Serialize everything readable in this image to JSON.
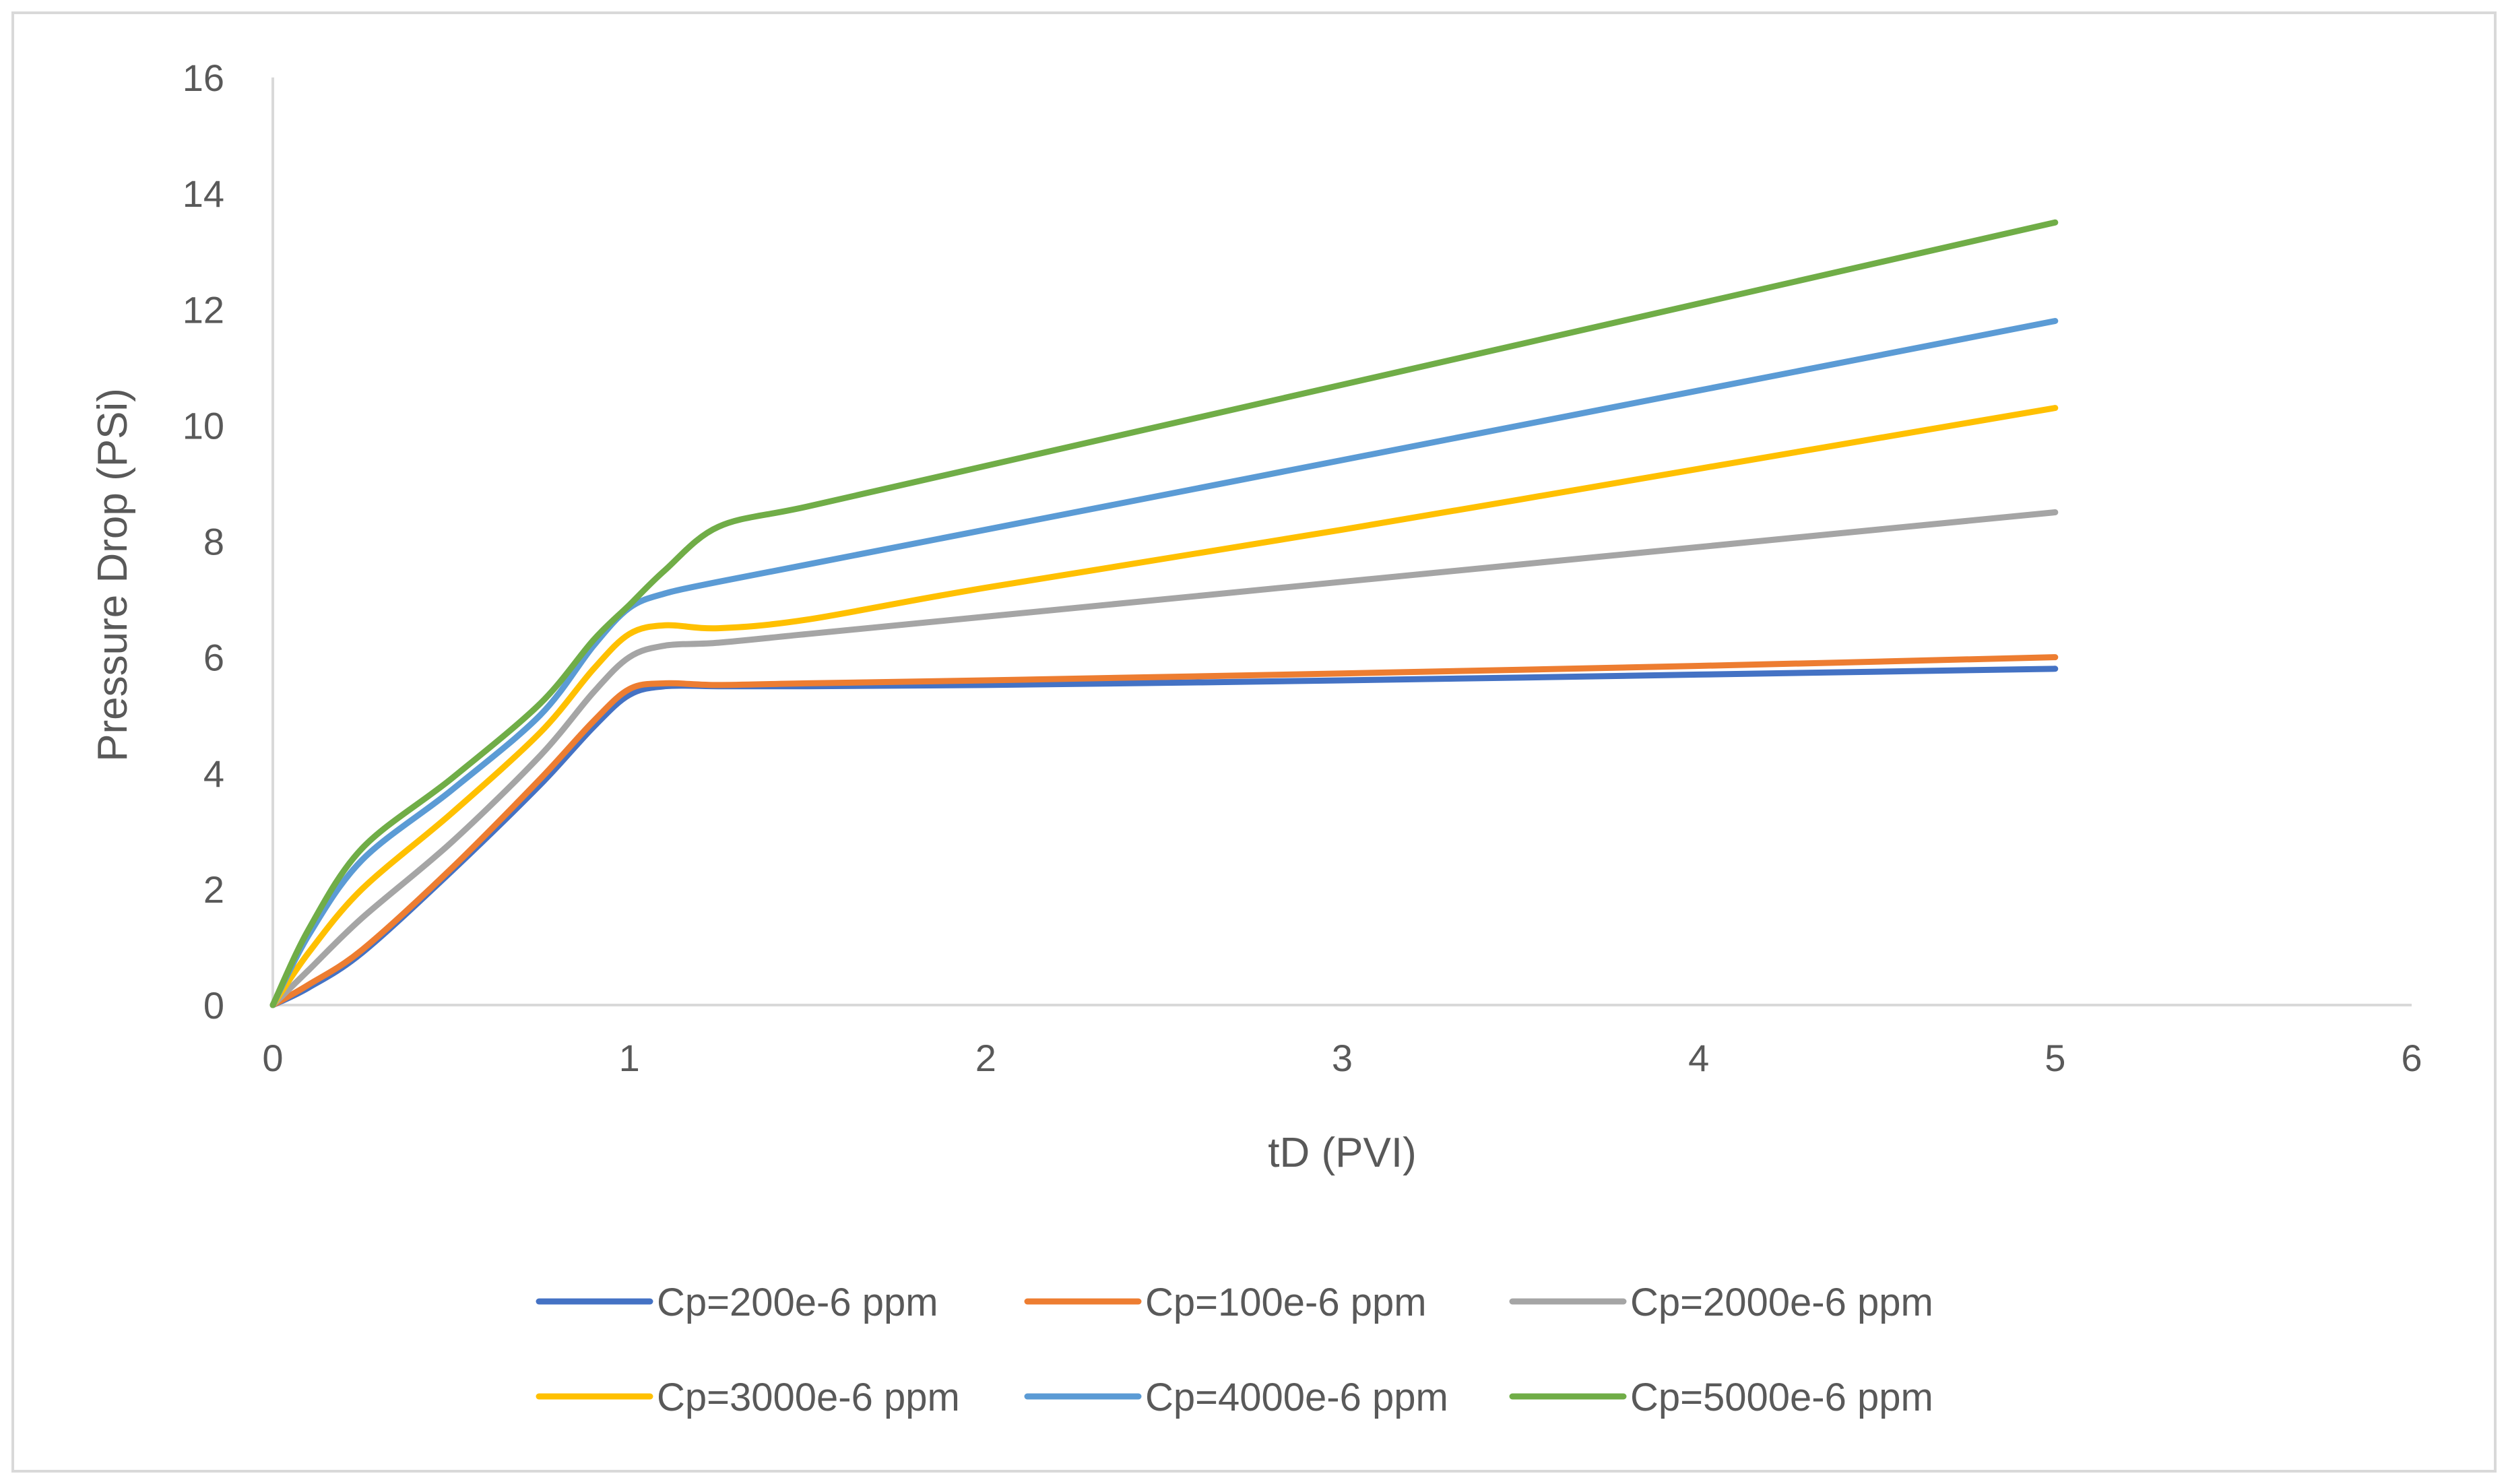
{
  "chart_data": {
    "type": "line",
    "title": "",
    "xlabel": "tD (PVI)",
    "ylabel": "Pressure Drop (PSi)",
    "xlim": [
      0,
      6
    ],
    "ylim": [
      0,
      16
    ],
    "xticks": [
      "0",
      "1",
      "2",
      "3",
      "4",
      "5",
      "6"
    ],
    "yticks": [
      "0",
      "2",
      "4",
      "6",
      "8",
      "10",
      "12",
      "14",
      "16"
    ],
    "grid": false,
    "legend_position": "bottom",
    "series": [
      {
        "name": "Cp=200e-6 ppm",
        "color": "#4472c4",
        "points": [
          [
            0,
            0
          ],
          [
            0.1,
            0.3
          ],
          [
            0.25,
            0.9
          ],
          [
            0.5,
            2.3
          ],
          [
            0.75,
            3.8
          ],
          [
            0.9,
            4.8
          ],
          [
            1.0,
            5.35
          ],
          [
            1.1,
            5.5
          ],
          [
            1.25,
            5.5
          ],
          [
            1.5,
            5.5
          ],
          [
            2,
            5.52
          ],
          [
            3,
            5.6
          ],
          [
            4,
            5.7
          ],
          [
            5,
            5.8
          ]
        ]
      },
      {
        "name": "Cp=100e-6 ppm",
        "color": "#ed7d31",
        "points": [
          [
            0,
            0
          ],
          [
            0.1,
            0.35
          ],
          [
            0.25,
            0.95
          ],
          [
            0.5,
            2.35
          ],
          [
            0.75,
            3.9
          ],
          [
            0.9,
            4.9
          ],
          [
            1.0,
            5.45
          ],
          [
            1.1,
            5.55
          ],
          [
            1.25,
            5.52
          ],
          [
            1.5,
            5.55
          ],
          [
            2,
            5.6
          ],
          [
            3,
            5.72
          ],
          [
            4,
            5.85
          ],
          [
            5,
            6.0
          ]
        ]
      },
      {
        "name": "Cp=2000e-6 ppm",
        "color": "#a5a5a5",
        "points": [
          [
            0,
            0
          ],
          [
            0.1,
            0.6
          ],
          [
            0.25,
            1.5
          ],
          [
            0.5,
            2.8
          ],
          [
            0.75,
            4.3
          ],
          [
            0.9,
            5.4
          ],
          [
            1.0,
            6.0
          ],
          [
            1.1,
            6.2
          ],
          [
            1.25,
            6.25
          ],
          [
            1.5,
            6.4
          ],
          [
            2,
            6.7
          ],
          [
            3,
            7.3
          ],
          [
            4,
            7.9
          ],
          [
            5,
            8.5
          ]
        ]
      },
      {
        "name": "Cp=3000e-6 ppm",
        "color": "#ffc000",
        "points": [
          [
            0,
            0
          ],
          [
            0.1,
            0.9
          ],
          [
            0.25,
            2.0
          ],
          [
            0.5,
            3.3
          ],
          [
            0.75,
            4.7
          ],
          [
            0.9,
            5.8
          ],
          [
            1.0,
            6.4
          ],
          [
            1.1,
            6.55
          ],
          [
            1.25,
            6.5
          ],
          [
            1.5,
            6.65
          ],
          [
            2,
            7.2
          ],
          [
            3,
            8.2
          ],
          [
            4,
            9.25
          ],
          [
            5,
            10.3
          ]
        ]
      },
      {
        "name": "Cp=4000e-6 ppm",
        "color": "#5b9bd5",
        "points": [
          [
            0,
            0
          ],
          [
            0.1,
            1.2
          ],
          [
            0.25,
            2.5
          ],
          [
            0.5,
            3.7
          ],
          [
            0.75,
            5.0
          ],
          [
            0.9,
            6.2
          ],
          [
            1.0,
            6.85
          ],
          [
            1.1,
            7.1
          ],
          [
            1.25,
            7.3
          ],
          [
            1.5,
            7.6
          ],
          [
            2,
            8.2
          ],
          [
            3,
            9.4
          ],
          [
            4,
            10.6
          ],
          [
            5,
            11.8
          ]
        ]
      },
      {
        "name": "Cp=5000e-6 ppm",
        "color": "#70ad47",
        "points": [
          [
            0,
            0
          ],
          [
            0.1,
            1.3
          ],
          [
            0.25,
            2.7
          ],
          [
            0.5,
            3.9
          ],
          [
            0.75,
            5.2
          ],
          [
            0.9,
            6.3
          ],
          [
            1.0,
            6.9
          ],
          [
            1.1,
            7.5
          ],
          [
            1.25,
            8.25
          ],
          [
            1.5,
            8.6
          ],
          [
            2,
            9.3
          ],
          [
            3,
            10.7
          ],
          [
            4,
            12.1
          ],
          [
            5,
            13.5
          ]
        ]
      }
    ]
  }
}
